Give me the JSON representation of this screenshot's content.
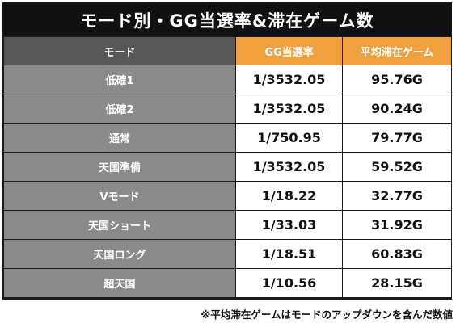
{
  "title": "モード別・GG当選率&滞在ゲーム数",
  "headers": [
    "モード",
    "GG当選率",
    "平均滞在ゲーム"
  ],
  "rows": [
    {
      "mode": "低確1",
      "rate": "1/3532.05",
      "games": "95.76G"
    },
    {
      "mode": "低確2",
      "rate": "1/3532.05",
      "games": "90.24G"
    },
    {
      "mode": "通常",
      "rate": "1/750.95",
      "games": "79.77G"
    },
    {
      "mode": "天国準備",
      "rate": "1/3532.05",
      "games": "59.52G"
    },
    {
      "mode": "Vモード",
      "rate": "1/18.22",
      "games": "32.77G"
    },
    {
      "mode": "天国ショート",
      "rate": "1/33.03",
      "games": "31.92G"
    },
    {
      "mode": "天国ロング",
      "rate": "1/18.51",
      "games": "60.83G"
    },
    {
      "mode": "超天国",
      "rate": "1/10.56",
      "games": "28.15G"
    }
  ],
  "note": "※平均滞在ゲームはモードのアップダウンを含んだ数値",
  "colors": {
    "title_bg": "#111111",
    "header_mode_bg": "#575757",
    "header_accent_bg": "#f0a03c",
    "mode_cell_bg": "#8a8a8a",
    "value_cell_bg": "#ffffff"
  }
}
